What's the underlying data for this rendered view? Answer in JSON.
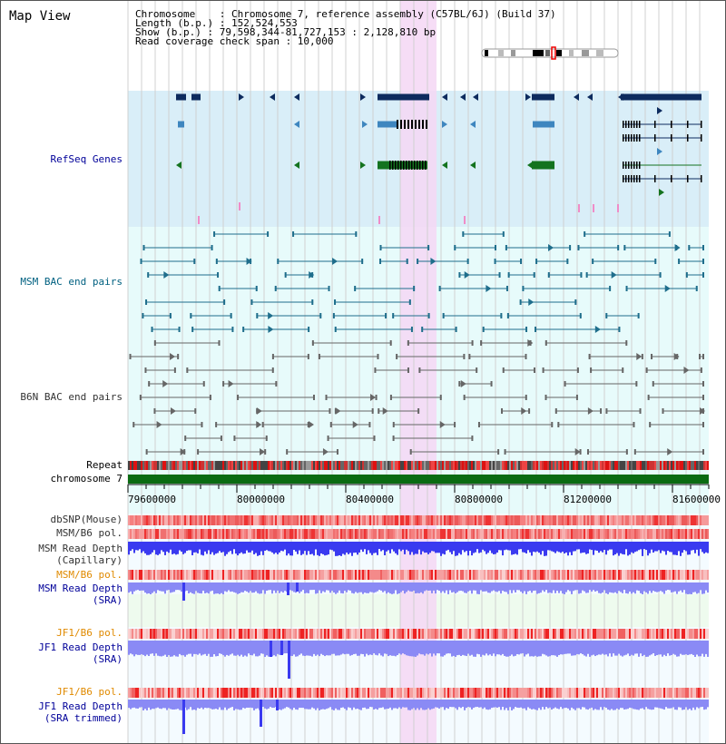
{
  "title": "Map View",
  "info": {
    "chromosome": "Chromosome    : Chromosome 7, reference assembly (C57BL/6J) (Build 37)",
    "length": "Length (b.p.) : 152,524,553",
    "show": "Show (b.p.) : 79,598,344-81,727,153 : 2,128,810 bp",
    "span": "Read coverage check span : 10,000"
  },
  "track_labels": {
    "refseq": "RefSeq Genes",
    "msm_bac": "MSM BAC end pairs",
    "b6n_bac": "B6N BAC end pairs",
    "repeat": "Repeat",
    "chromosome": "chromosome 7",
    "dbsnp": "dbSNP(Mouse)",
    "msm_pol_1": "MSM/B6 pol.",
    "msm_depth_cap_1": "MSM Read Depth",
    "msm_depth_cap_2": "(Capillary)",
    "msm_pol_2": "MSM/B6 pol.",
    "msm_depth_sra_1": "MSM Read Depth",
    "msm_depth_sra_2": "(SRA)",
    "jf1_pol_1": "JF1/B6 pol.",
    "jf1_depth_sra_1": "JF1 Read Depth",
    "jf1_depth_sra_2": "(SRA)",
    "jf1_pol_2": "JF1/B6 pol.",
    "jf1_depth_trim_1": "JF1 Read Depth",
    "jf1_depth_trim_2": "(SRA trimmed)"
  },
  "axis_ticks": [
    "79600000",
    "80000000",
    "80400000",
    "80800000",
    "81200000",
    "81600000"
  ],
  "colors": {
    "refseq_bg": "#d9eef8",
    "cyan_bg": "#e7fbfb",
    "highlight": "#f5d7f5",
    "refseq_dark": "#0d2b5e",
    "refseq_mid": "#3e86bf",
    "refseq_green": "#14731f",
    "msm_bac": "#1f6e8c",
    "b6n_bac": "#666666",
    "chrom_green": "#0a6b12",
    "depth_blue": "#3a3af0",
    "depth_light": "#8a8af5",
    "label_navy": "#000099",
    "label_orange": "#e08a00",
    "label_teal": "#006080",
    "label_darkgray": "#333333"
  }
}
